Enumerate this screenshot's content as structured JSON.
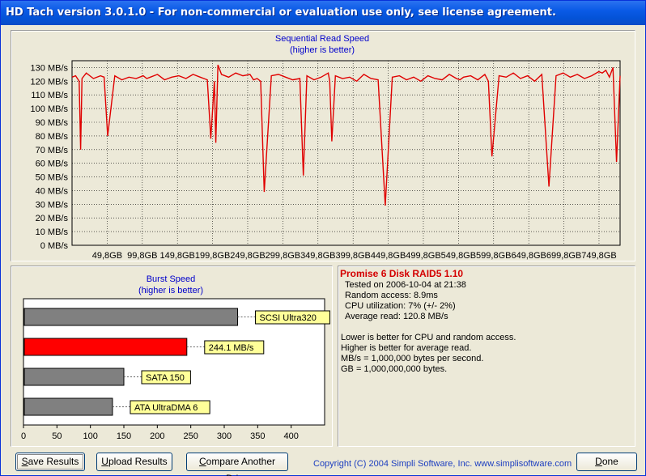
{
  "window": {
    "title": "HD Tach version 3.0.1.0  - For non-commercial or evaluation use only, see license agreement."
  },
  "chart_data": [
    {
      "type": "line",
      "title": "Sequential Read Speed",
      "subtitle": "(higher is better)",
      "ylabel": "",
      "xlabel": "",
      "ylim": [
        0,
        135
      ],
      "xlim": [
        0,
        770
      ],
      "y_ticks": [
        "0 MB/s",
        "10 MB/s",
        "20 MB/s",
        "30 MB/s",
        "40 MB/s",
        "50 MB/s",
        "60 MB/s",
        "70 MB/s",
        "80 MB/s",
        "90 MB/s",
        "100 MB/s",
        "110 MB/s",
        "120 MB/s",
        "130 MB/s"
      ],
      "x_ticks": [
        "49,8GB",
        "99,8GB",
        "149,8GB",
        "199,8GB",
        "249,8GB",
        "299,8GB",
        "349,8GB",
        "399,8GB",
        "449,8GB",
        "499,8GB",
        "549,8GB",
        "599,8GB",
        "649,8GB",
        "699,8GB",
        "749,8GB"
      ],
      "grid": true,
      "series": [
        {
          "color": "#e00000",
          "x": [
            0,
            5,
            10,
            12,
            14,
            20,
            30,
            40,
            45,
            50,
            60,
            70,
            80,
            90,
            100,
            105,
            110,
            120,
            130,
            140,
            150,
            160,
            170,
            180,
            190,
            195,
            200,
            202,
            205,
            210,
            220,
            230,
            240,
            250,
            255,
            260,
            265,
            270,
            280,
            290,
            300,
            310,
            320,
            325,
            330,
            340,
            350,
            360,
            362,
            365,
            370,
            380,
            390,
            400,
            410,
            420,
            430,
            440,
            450,
            460,
            470,
            480,
            490,
            500,
            510,
            520,
            530,
            540,
            545,
            550,
            560,
            570,
            580,
            585,
            590,
            600,
            610,
            620,
            630,
            640,
            650,
            660,
            670,
            680,
            690,
            700,
            710,
            720,
            730,
            740,
            745,
            750,
            755,
            760,
            765,
            770
          ],
          "values": [
            123,
            124,
            120,
            70,
            122,
            126,
            122,
            124,
            123,
            80,
            124,
            121,
            123,
            122,
            124,
            122,
            123,
            125,
            121,
            123,
            124,
            122,
            125,
            123,
            121,
            78,
            120,
            75,
            132,
            125,
            123,
            126,
            124,
            125,
            121,
            122,
            120,
            39,
            124,
            125,
            123,
            121,
            122,
            51,
            124,
            121,
            123,
            126,
            120,
            76,
            124,
            122,
            123,
            120,
            125,
            122,
            121,
            29,
            123,
            124,
            121,
            123,
            120,
            124,
            122,
            121,
            125,
            122,
            121,
            123,
            124,
            121,
            125,
            120,
            65,
            124,
            123,
            126,
            122,
            124,
            120,
            125,
            43,
            124,
            126,
            123,
            125,
            122,
            124,
            127,
            126,
            128,
            123,
            130,
            61,
            124
          ]
        }
      ]
    },
    {
      "type": "bar",
      "orientation": "horizontal",
      "title": "Burst Speed",
      "subtitle": "(higher is better)",
      "xlim": [
        0,
        450
      ],
      "x_ticks": [
        "0",
        "50",
        "100",
        "150",
        "200",
        "250",
        "300",
        "350",
        "400"
      ],
      "categories": [
        "SCSI Ultra320",
        "244.1 MB/s",
        "SATA 150",
        "ATA UltraDMA 6"
      ],
      "values": [
        320,
        244.1,
        150,
        133
      ],
      "colors": [
        "#808080",
        "#ff0000",
        "#808080",
        "#808080"
      ]
    }
  ],
  "info": {
    "title": "Promise 6 Disk RAID5 1.10",
    "tested_on": "Tested on 2006-10-04 at 21:38",
    "random_access": "Random access: 8.9ms",
    "cpu_utilization": "CPU utilization: 7% (+/- 2%)",
    "average_read": "Average read: 120.8 MB/s",
    "note1": "Lower is better for CPU and random access.",
    "note2": "Higher is better for average read.",
    "note3": "MB/s = 1,000,000 bytes per second.",
    "note4": "GB = 1,000,000,000 bytes."
  },
  "buttons": {
    "save_prefix": "S",
    "save_rest": "ave Results",
    "upload_prefix": "U",
    "upload_rest": "pload Results",
    "compare_prefix": "C",
    "compare_rest": "ompare Another Drive",
    "done_prefix": "D",
    "done_rest": "one"
  },
  "footer": {
    "copyright": "Copyright (C) 2004 Simpli Software, Inc. www.simplisoftware.com"
  }
}
